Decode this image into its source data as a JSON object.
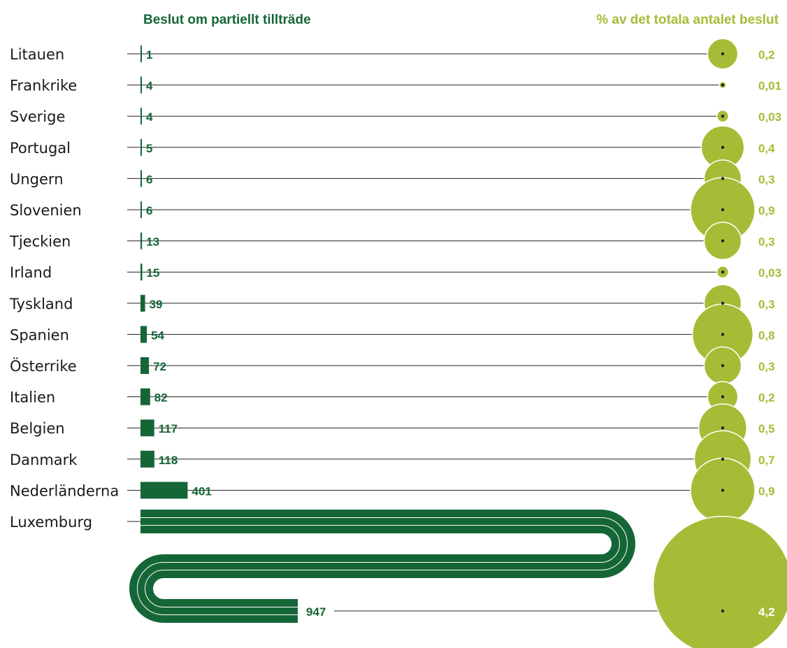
{
  "colors": {
    "bar": "#156637",
    "bubble": "#a8bb36",
    "bubble_label": "#a8bb36",
    "value_label": "#156637",
    "line": "#222222",
    "country": "#1a1a1a"
  },
  "chart_data": {
    "type": "bar",
    "left_title": "Beslut om partiellt tillträde",
    "right_title": "% av det totala antalet beslut",
    "categories": [
      "Litauen",
      "Frankrike",
      "Sverige",
      "Portugal",
      "Ungern",
      "Slovenien",
      "Tjeckien",
      "Irland",
      "Tyskland",
      "Spanien",
      "Österrike",
      "Italien",
      "Belgien",
      "Danmark",
      "Nederländerna",
      "Luxemburg"
    ],
    "series": [
      {
        "values": [
          1,
          4,
          4,
          5,
          6,
          6,
          13,
          15,
          39,
          54,
          72,
          82,
          117,
          118,
          401,
          947
        ]
      },
      {
        "values": [
          0.2,
          0.01,
          0.03,
          0.4,
          0.3,
          0.9,
          0.3,
          0.03,
          0.3,
          0.8,
          0.3,
          0.2,
          0.5,
          0.7,
          0.9,
          4.2
        ]
      }
    ],
    "value_labels": [
      "1",
      "4",
      "4",
      "5",
      "6",
      "6",
      "13",
      "15",
      "39",
      "54",
      "72",
      "82",
      "117",
      "118",
      "401",
      "947"
    ],
    "percent_labels": [
      "0,2",
      "0,01",
      "0,03",
      "0,4",
      "0,3",
      "0,9",
      "0,3",
      "0,03",
      "0,3",
      "0,8",
      "0,3",
      "0,2",
      "0,5",
      "0,7",
      "0,9",
      "4,2"
    ]
  }
}
